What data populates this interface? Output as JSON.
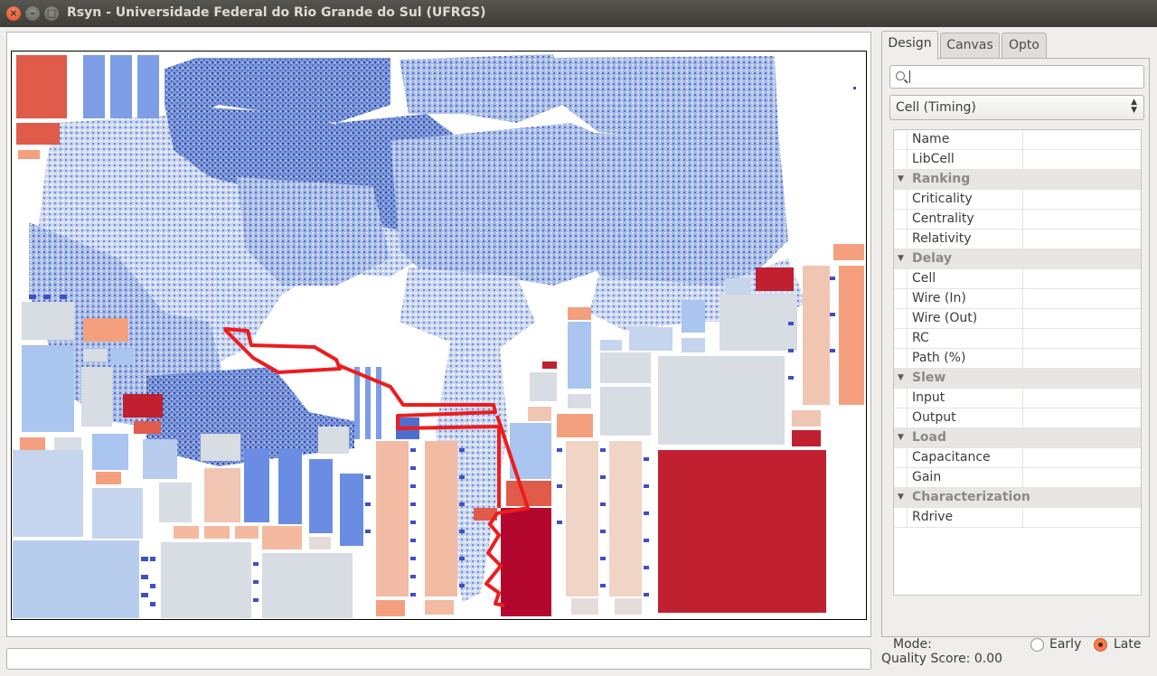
{
  "window": {
    "title": "Rsyn - Universidade Federal do Rio Grande do Sul (UFRGS)",
    "close_glyph": "×",
    "minimize_glyph": "–",
    "maximize_glyph": "□"
  },
  "tabs": [
    {
      "label": "Design",
      "active": true
    },
    {
      "label": "Canvas",
      "active": false
    },
    {
      "label": "Opto",
      "active": false
    }
  ],
  "search": {
    "placeholder": "",
    "value": ""
  },
  "view_select": {
    "selected": "Cell (Timing)"
  },
  "properties": [
    {
      "type": "item",
      "label": "Name"
    },
    {
      "type": "item",
      "label": "LibCell"
    },
    {
      "type": "group",
      "label": "Ranking"
    },
    {
      "type": "item",
      "label": "Criticality"
    },
    {
      "type": "item",
      "label": "Centrality"
    },
    {
      "type": "item",
      "label": "Relativity"
    },
    {
      "type": "group",
      "label": "Delay"
    },
    {
      "type": "item",
      "label": "Cell"
    },
    {
      "type": "item",
      "label": "Wire (In)"
    },
    {
      "type": "item",
      "label": "Wire (Out)"
    },
    {
      "type": "item",
      "label": "RC"
    },
    {
      "type": "item",
      "label": "Path (%)"
    },
    {
      "type": "group",
      "label": "Slew"
    },
    {
      "type": "item",
      "label": "Input"
    },
    {
      "type": "item",
      "label": "Output"
    },
    {
      "type": "group",
      "label": "Load"
    },
    {
      "type": "item",
      "label": "Capacitance"
    },
    {
      "type": "item",
      "label": "Gain"
    },
    {
      "type": "group",
      "label": "Characterization"
    },
    {
      "type": "item",
      "label": "Rdrive"
    }
  ],
  "mode": {
    "label": "Mode:",
    "early": "Early",
    "late": "Late",
    "selected": "Late"
  },
  "status": {
    "quality": "Quality Score: 0.00"
  },
  "colors": {
    "critical": "#b5122d",
    "hot": "#e05b4a",
    "warm": "#f4a07f",
    "neutral": "#d8dce3",
    "cool": "#a9c5f0",
    "cold": "#3f63c7",
    "path": "#ee1c1c"
  }
}
